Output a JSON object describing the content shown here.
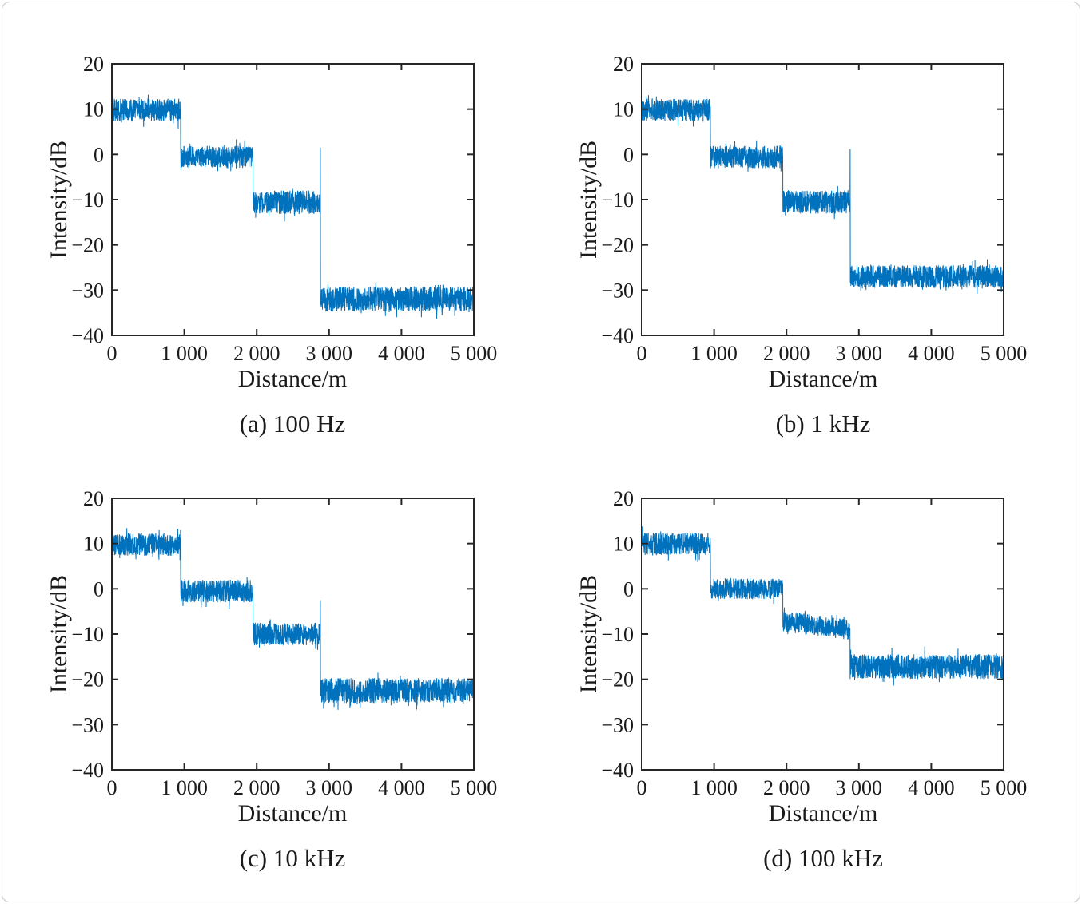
{
  "figure": {
    "background": "#ffffff",
    "border_color": "#c6c6c6",
    "axis_color": "#262626",
    "text_color": "#1a1a1a"
  },
  "chart_data": [
    {
      "type": "line",
      "caption": "(a) 100 Hz",
      "xlabel": "Distance/m",
      "ylabel": "Intensity/dB",
      "xlim": [
        0,
        5000
      ],
      "ylim": [
        -40,
        20
      ],
      "xticks": [
        0,
        1000,
        2000,
        3000,
        4000,
        5000
      ],
      "xtick_labels": [
        "0",
        "1 000",
        "2 000",
        "3 000",
        "4 000",
        "5 000"
      ],
      "yticks": [
        20,
        10,
        0,
        -10,
        -20,
        -30,
        -40
      ],
      "ytick_labels": [
        "20",
        "10",
        "0",
        "−10",
        "−20",
        "−30",
        "−40"
      ],
      "line_color": "#0072BD",
      "grid": false,
      "segments": [
        {
          "x_start": 0,
          "x_end": 950,
          "mean": 9.8,
          "noise_pp": 5.0
        },
        {
          "x_start": 950,
          "x_end": 1950,
          "mean": -0.6,
          "noise_pp": 5.0
        },
        {
          "x_start": 1950,
          "x_end": 2880,
          "mean": -10.6,
          "noise_pp": 5.2
        },
        {
          "x_start": 2880,
          "x_end": 5000,
          "mean": -32.0,
          "noise_pp": 5.5
        }
      ],
      "spike": {
        "x": 2880,
        "y": 1.5
      }
    },
    {
      "type": "line",
      "caption": "(b) 1 kHz",
      "xlabel": "Distance/m",
      "ylabel": "Intensity/dB",
      "xlim": [
        0,
        5000
      ],
      "ylim": [
        -40,
        20
      ],
      "xticks": [
        0,
        1000,
        2000,
        3000,
        4000,
        5000
      ],
      "xtick_labels": [
        "0",
        "1 000",
        "2 000",
        "3 000",
        "4 000",
        "5 000"
      ],
      "yticks": [
        20,
        10,
        0,
        -10,
        -20,
        -30,
        -40
      ],
      "ytick_labels": [
        "20",
        "10",
        "0",
        "−10",
        "−20",
        "−30",
        "−40"
      ],
      "line_color": "#0072BD",
      "grid": false,
      "segments": [
        {
          "x_start": 0,
          "x_end": 950,
          "mean": 9.8,
          "noise_pp": 5.0
        },
        {
          "x_start": 950,
          "x_end": 1950,
          "mean": -0.6,
          "noise_pp": 5.0
        },
        {
          "x_start": 1950,
          "x_end": 2880,
          "mean": -10.5,
          "noise_pp": 5.2
        },
        {
          "x_start": 2880,
          "x_end": 5000,
          "mean": -27.0,
          "noise_pp": 5.0
        }
      ],
      "spike": {
        "x": 2880,
        "y": 1.2
      }
    },
    {
      "type": "line",
      "caption": "(c) 10 kHz",
      "xlabel": "Distance/m",
      "ylabel": "Intensity/dB",
      "xlim": [
        0,
        5000
      ],
      "ylim": [
        -40,
        20
      ],
      "xticks": [
        0,
        1000,
        2000,
        3000,
        4000,
        5000
      ],
      "xtick_labels": [
        "0",
        "1 000",
        "2 000",
        "3 000",
        "4 000",
        "5 000"
      ],
      "yticks": [
        20,
        10,
        0,
        -10,
        -20,
        -30,
        -40
      ],
      "ytick_labels": [
        "20",
        "10",
        "0",
        "−10",
        "−20",
        "−30",
        "−40"
      ],
      "line_color": "#0072BD",
      "grid": false,
      "segments": [
        {
          "x_start": 0,
          "x_end": 950,
          "mean": 9.8,
          "noise_pp": 5.0
        },
        {
          "x_start": 950,
          "x_end": 1950,
          "mean": -0.5,
          "noise_pp": 5.0
        },
        {
          "x_start": 1950,
          "x_end": 2880,
          "mean": -10.0,
          "noise_pp": 5.0
        },
        {
          "x_start": 2880,
          "x_end": 5000,
          "mean": -22.5,
          "noise_pp": 5.5
        }
      ],
      "spike": {
        "x": 2880,
        "y": -2.5
      }
    },
    {
      "type": "line",
      "caption": "(d) 100 kHz",
      "xlabel": "Distance/m",
      "ylabel": "Intensity/dB",
      "xlim": [
        0,
        5000
      ],
      "ylim": [
        -40,
        20
      ],
      "xticks": [
        0,
        1000,
        2000,
        3000,
        4000,
        5000
      ],
      "xtick_labels": [
        "0",
        "1 000",
        "2 000",
        "3 000",
        "4 000",
        "5 000"
      ],
      "yticks": [
        20,
        10,
        0,
        -10,
        -20,
        -30,
        -40
      ],
      "ytick_labels": [
        "20",
        "10",
        "0",
        "−10",
        "−20",
        "−30",
        "−40"
      ],
      "line_color": "#0072BD",
      "grid": false,
      "segments": [
        {
          "x_start": 0,
          "x_end": 950,
          "mean": 9.9,
          "noise_pp": 5.0
        },
        {
          "x_start": 950,
          "x_end": 1950,
          "mean": 0.0,
          "noise_pp": 4.6
        },
        {
          "x_start": 1950,
          "x_end": 2880,
          "mean_start": -7.2,
          "mean_end": -9.0,
          "noise_pp": 4.6
        },
        {
          "x_start": 2880,
          "x_end": 5000,
          "mean": -17.2,
          "noise_pp": 5.5
        }
      ],
      "spike": null
    }
  ]
}
